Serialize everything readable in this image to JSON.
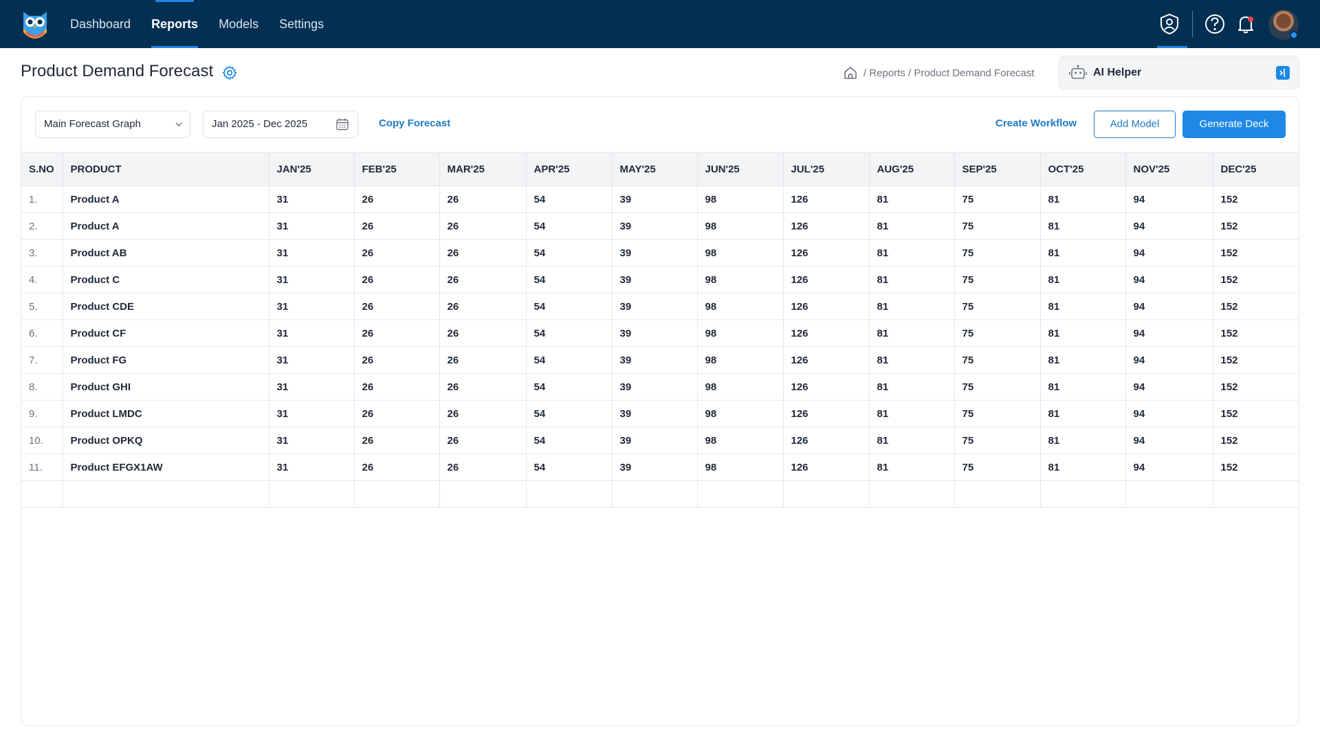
{
  "nav": {
    "items": [
      "Dashboard",
      "Reports",
      "Models",
      "Settings"
    ],
    "active": "Reports"
  },
  "icons": {
    "brand": "owl-logo",
    "top_right": [
      "user-shield-icon",
      "help-icon",
      "bell-icon",
      "avatar"
    ]
  },
  "page": {
    "title": "Product Demand Forecast",
    "breadcrumb": "/ Reports / Product Demand Forecast"
  },
  "ai_helper": {
    "label": "AI Helper"
  },
  "toolbar": {
    "graph_select": "Main Forecast Graph",
    "date_range": "Jan 2025 - Dec 2025",
    "copy_forecast": "Copy Forecast",
    "create_workflow": "Create Workflow",
    "add_model": "Add Model",
    "generate_deck": "Generate Deck"
  },
  "table": {
    "columns": [
      "S.NO",
      "PRODUCT",
      "JAN'25",
      "FEB'25",
      "MAR'25",
      "APR'25",
      "MAY'25",
      "JUN'25",
      "JUL'25",
      "AUG'25",
      "SEP'25",
      "OCT'25",
      "NOV'25",
      "DEC'25"
    ],
    "rows": [
      [
        "1.",
        "Product A",
        "31",
        "26",
        "26",
        "54",
        "39",
        "98",
        "126",
        "81",
        "75",
        "81",
        "94",
        "152"
      ],
      [
        "2.",
        "Product A",
        "31",
        "26",
        "26",
        "54",
        "39",
        "98",
        "126",
        "81",
        "75",
        "81",
        "94",
        "152"
      ],
      [
        "3.",
        "Product AB",
        "31",
        "26",
        "26",
        "54",
        "39",
        "98",
        "126",
        "81",
        "75",
        "81",
        "94",
        "152"
      ],
      [
        "4.",
        "Product C",
        "31",
        "26",
        "26",
        "54",
        "39",
        "98",
        "126",
        "81",
        "75",
        "81",
        "94",
        "152"
      ],
      [
        "5.",
        "Product CDE",
        "31",
        "26",
        "26",
        "54",
        "39",
        "98",
        "126",
        "81",
        "75",
        "81",
        "94",
        "152"
      ],
      [
        "6.",
        "Product CF",
        "31",
        "26",
        "26",
        "54",
        "39",
        "98",
        "126",
        "81",
        "75",
        "81",
        "94",
        "152"
      ],
      [
        "7.",
        "Product FG",
        "31",
        "26",
        "26",
        "54",
        "39",
        "98",
        "126",
        "81",
        "75",
        "81",
        "94",
        "152"
      ],
      [
        "8.",
        "Product GHI",
        "31",
        "26",
        "26",
        "54",
        "39",
        "98",
        "126",
        "81",
        "75",
        "81",
        "94",
        "152"
      ],
      [
        "9.",
        "Product LMDC",
        "31",
        "26",
        "26",
        "54",
        "39",
        "98",
        "126",
        "81",
        "75",
        "81",
        "94",
        "152"
      ],
      [
        "10.",
        "Product OPKQ",
        "31",
        "26",
        "26",
        "54",
        "39",
        "98",
        "126",
        "81",
        "75",
        "81",
        "94",
        "152"
      ],
      [
        "11.",
        "Product EFGX1AW",
        "31",
        "26",
        "26",
        "54",
        "39",
        "98",
        "126",
        "81",
        "75",
        "81",
        "94",
        "152"
      ]
    ]
  },
  "colors": {
    "topbar": "#032f52",
    "accent": "#1e88e5",
    "link": "#1e7bc8"
  }
}
